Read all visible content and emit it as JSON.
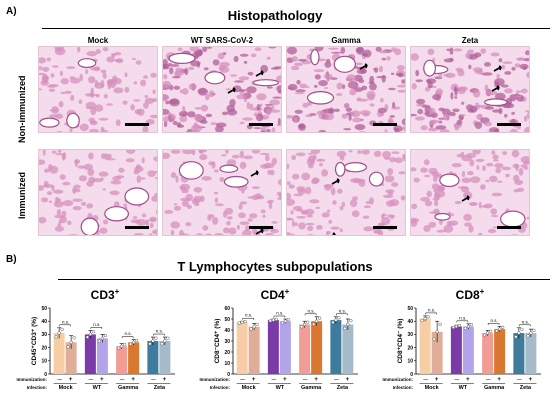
{
  "panel_a": {
    "label": "A)",
    "title": "Histopathology",
    "columns": [
      "Mock",
      "WT SARS-CoV-2",
      "Gamma",
      "Zeta"
    ],
    "rows": [
      "Non-immunized",
      "Immunized"
    ]
  },
  "panel_b": {
    "label": "B)",
    "title": "T Lymphocytes subpopulations"
  },
  "colors": {
    "mock_minus": "#f6cda4",
    "mock_plus": "#e0ae98",
    "wt_minus": "#7a3aa8",
    "wt_plus": "#b1a4ea",
    "gamma_minus": "#f29c96",
    "gamma_plus": "#d9782e",
    "zeta_minus": "#3e7b9c",
    "zeta_plus": "#a5bbc9"
  },
  "chart_data": [
    {
      "type": "bar",
      "title": "CD3",
      "title_sup": "+",
      "ylabel": "CD45⁺CD3⁺ (%)",
      "ylim": [
        0,
        50
      ],
      "yticks": [
        0,
        10,
        20,
        30,
        40,
        50
      ],
      "groups": [
        "Mock",
        "WT",
        "Gamma",
        "Zeta"
      ],
      "immunization": [
        "—",
        "+"
      ],
      "row_labels": [
        "Immunization:",
        "Infection:"
      ],
      "significance": [
        "n.s.",
        "n.s.",
        "n.s.",
        "n.s."
      ],
      "values": [
        [
          31,
          24
        ],
        [
          30,
          27
        ],
        [
          21,
          24
        ],
        [
          25,
          25
        ]
      ],
      "errors": [
        [
          4,
          5
        ],
        [
          3,
          3
        ],
        [
          2,
          2
        ],
        [
          3,
          3
        ]
      ]
    },
    {
      "type": "bar",
      "title": "CD4",
      "title_sup": "+",
      "ylabel": "CD8⁻CD4⁺ (%)",
      "ylim": [
        0,
        60
      ],
      "yticks": [
        0,
        10,
        20,
        30,
        40,
        50,
        60
      ],
      "groups": [
        "Mock",
        "WT",
        "Gamma",
        "Zeta"
      ],
      "immunization": [
        "—",
        "+"
      ],
      "row_labels": [
        "Immunization:",
        "Infection:"
      ],
      "significance": [
        "n.s.",
        "n.s.",
        "n.s.",
        "n.s."
      ],
      "values": [
        [
          47,
          43
        ],
        [
          49,
          48
        ],
        [
          45,
          48
        ],
        [
          49,
          45
        ]
      ],
      "errors": [
        [
          1,
          3
        ],
        [
          1,
          2
        ],
        [
          3,
          4
        ],
        [
          3,
          5
        ]
      ]
    },
    {
      "type": "bar",
      "title": "CD8",
      "title_sup": "+",
      "ylabel": "CD8⁺CD4⁻ (%)",
      "ylim": [
        0,
        50
      ],
      "yticks": [
        0,
        10,
        20,
        30,
        40,
        50
      ],
      "groups": [
        "Mock",
        "WT",
        "Gamma",
        "Zeta"
      ],
      "immunization": [
        "—",
        "+"
      ],
      "row_labels": [
        "Immunization:",
        "Infection:"
      ],
      "significance": [
        "n.s.",
        "n.s.",
        "n.s.",
        "n.s."
      ],
      "values": [
        [
          42,
          32
        ],
        [
          36,
          36
        ],
        [
          31,
          34
        ],
        [
          31,
          31
        ]
      ],
      "errors": [
        [
          2,
          8
        ],
        [
          1,
          2
        ],
        [
          2,
          2
        ],
        [
          4,
          3
        ]
      ]
    }
  ]
}
